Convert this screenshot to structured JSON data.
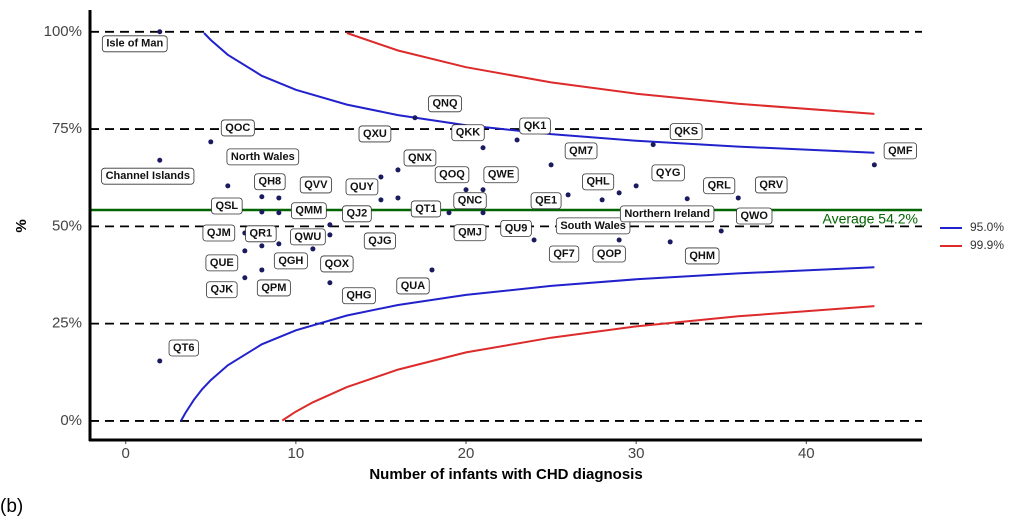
{
  "chart_data": {
    "type": "funnel",
    "caption": "(b)",
    "x_label": "Number of infants with CHD diagnosis",
    "y_label": "%",
    "xlim": [
      -2.1,
      46.8
    ],
    "ylim": [
      -4.9,
      105.6
    ],
    "xticks": [
      0,
      10,
      20,
      30,
      40
    ],
    "yticks": [
      {
        "value": 0,
        "label": "0%"
      },
      {
        "value": 25,
        "label": "25%"
      },
      {
        "value": 50,
        "label": "50%"
      },
      {
        "value": 75,
        "label": "75%"
      },
      {
        "value": 100,
        "label": "100%"
      }
    ],
    "grid": true,
    "legend": "right",
    "average": {
      "value": 54.2,
      "label": "Average 54.2%",
      "color": "#006400"
    },
    "points": {
      "color": "#1a1a5e",
      "labels": [
        "Isle of Man",
        "Channel Islands",
        "QT6",
        "QOC",
        "North Wales",
        "QH8",
        "QSL",
        "QVV",
        "QMM",
        "QJM",
        "QR1",
        "QWU",
        "QUE",
        "QGH",
        "QJK",
        "QPM",
        "QOX",
        "QHG",
        "QJ2",
        "QJG",
        "QUY",
        "QXU",
        "QNX",
        "QT1",
        "QNQ",
        "QKK",
        "QOQ",
        "QWE",
        "QNC",
        "QMJ",
        "QK1",
        "QUA",
        "QE1",
        "QU9",
        "QF7",
        "QM7",
        "QHL",
        "South Wales",
        "QOP",
        "Northern Ireland",
        "QYG",
        "QKS",
        "QRL",
        "QHM",
        "QRV",
        "QWO",
        "QMF"
      ],
      "x": [
        2,
        2,
        2,
        5,
        6,
        8,
        8,
        9,
        9,
        7,
        8,
        9,
        7,
        9,
        7,
        8,
        11,
        12,
        12,
        12,
        15,
        15,
        16,
        16,
        17,
        21,
        20,
        21,
        21,
        19,
        23,
        18,
        24,
        23,
        24,
        25,
        26,
        28,
        29,
        29,
        30,
        31,
        33,
        32,
        36,
        35,
        44
      ],
      "values": [
        100,
        67,
        15.4,
        71.7,
        60.4,
        57.6,
        53.7,
        57.3,
        53.5,
        48.3,
        45,
        45.5,
        43.7,
        41.9,
        36.8,
        38.8,
        44.2,
        35.5,
        50.4,
        47.8,
        56.8,
        62.7,
        64.5,
        57.3,
        77.9,
        70.2,
        59.4,
        59.4,
        53.5,
        53.5,
        72.2,
        38.8,
        55.3,
        50,
        46.5,
        65.8,
        58.1,
        56.8,
        46.5,
        58.6,
        60.4,
        71,
        57.1,
        46,
        57.3,
        48.8,
        65.8
      ]
    },
    "series": [
      {
        "name": "95.0%",
        "color": "#2222cc",
        "x": [
          4.6,
          5,
          6,
          8,
          10,
          13,
          16,
          20,
          25,
          30,
          36,
          44,
          null,
          3.25,
          3.5,
          4,
          4.5,
          5,
          6,
          8,
          10,
          13,
          16,
          20,
          25,
          30,
          36,
          44
        ],
        "values": [
          99.7,
          97.9,
          94.1,
          88.7,
          85.1,
          81.3,
          78.6,
          76.0,
          73.7,
          72.0,
          70.5,
          68.9,
          null,
          0,
          2.0,
          5.4,
          8.2,
          10.5,
          14.3,
          19.7,
          23.3,
          27.1,
          29.8,
          32.4,
          34.7,
          36.4,
          37.9,
          39.5
        ]
      },
      {
        "name": "99.9%",
        "color": "#dd2a2a",
        "x": [
          13,
          16,
          20,
          25,
          30,
          36,
          44,
          null,
          9.2,
          10,
          11,
          13,
          16,
          20,
          25,
          30,
          36,
          44
        ],
        "values": [
          99.7,
          95.2,
          90.9,
          87.0,
          84.1,
          81.5,
          78.9,
          null,
          0.1,
          2.4,
          4.8,
          8.7,
          13.2,
          17.6,
          21.4,
          24.3,
          26.9,
          29.5
        ]
      }
    ]
  }
}
